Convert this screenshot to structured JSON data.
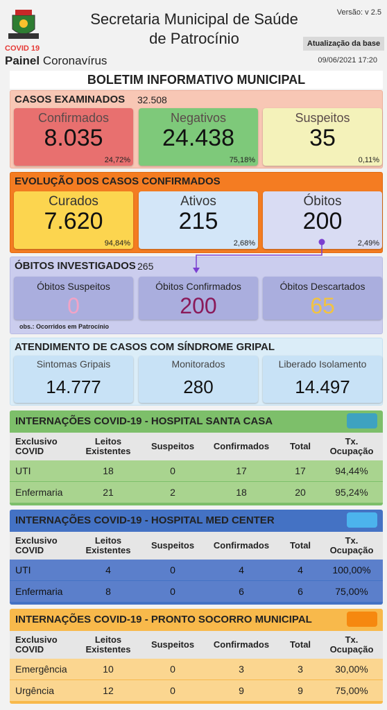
{
  "header": {
    "brand": "COVID 19",
    "panel_bold": "Painel",
    "panel": "Coronavírus",
    "title_line1": "Secretaria Municipal de Saúde",
    "title_line2": "de Patrocínio",
    "version": "Versão: v 2.5",
    "update_label": "Atualização da base",
    "update_time": "09/06/2021 17:20"
  },
  "bulletin_title": "BOLETIM INFORMATIVO MUNICIPAL",
  "sections": [
    {
      "title": "CASOS EXAMINADOS",
      "total": "32.508",
      "cards": [
        {
          "label": "Confirmados",
          "value": "8.035",
          "percent": "24,72%"
        },
        {
          "label": "Negativos",
          "value": "24.438",
          "percent": "75,18%"
        },
        {
          "label": "Suspeitos",
          "value": "35",
          "percent": "0,11%"
        }
      ]
    },
    {
      "title": "EVOLUÇÃO DOS CASOS CONFIRMADOS",
      "cards": [
        {
          "label": "Curados",
          "value": "7.620",
          "percent": "94,84%"
        },
        {
          "label": "Ativos",
          "value": "215",
          "percent": "2,68%"
        },
        {
          "label": "Óbitos",
          "value": "200",
          "percent": "2,49%"
        }
      ]
    },
    {
      "title": "ÓBITOS INVESTIGADOS",
      "total": "265",
      "cards": [
        {
          "label": "Óbitos Suspeitos",
          "value": "0"
        },
        {
          "label": "Óbitos Confirmados",
          "value": "200"
        },
        {
          "label": "Óbitos Descartados",
          "value": "65"
        }
      ]
    },
    {
      "title": "ATENDIMENTO DE CASOS COM SÍNDROME GRIPAL",
      "cards": [
        {
          "label": "Sintomas Gripais",
          "value": "14.777"
        },
        {
          "label": "Monitorados",
          "value": "280"
        },
        {
          "label": "Liberado Isolamento",
          "value": "14.497"
        }
      ]
    }
  ],
  "note": "obs.: Ocorridos em Patrocínio",
  "tables": [
    {
      "title": "INTERNAÇÕES COVID-19 - HOSPITAL SANTA CASA",
      "columns": [
        "Exclusivo COVID",
        "Leitos Existentes",
        "Suspeitos",
        "Confirmados",
        "Total",
        "Tx. Ocupação"
      ],
      "rows": [
        [
          "UTI",
          "18",
          "0",
          "17",
          "17",
          "94,44%"
        ],
        [
          "Enfermaria",
          "21",
          "2",
          "18",
          "20",
          "95,24%"
        ]
      ]
    },
    {
      "title": "INTERNAÇÕES COVID-19 - HOSPITAL MED CENTER",
      "columns": [
        "Exclusivo COVID",
        "Leitos Existentes",
        "Suspeitos",
        "Confirmados",
        "Total",
        "Tx. Ocupação"
      ],
      "rows": [
        [
          "UTI",
          "4",
          "0",
          "4",
          "4",
          "100,00%"
        ],
        [
          "Enfermaria",
          "8",
          "0",
          "6",
          "6",
          "75,00%"
        ]
      ]
    },
    {
      "title": "INTERNAÇÕES COVID-19 - PRONTO SOCORRO MUNICIPAL",
      "columns": [
        "Exclusivo COVID",
        "Leitos Existentes",
        "Suspeitos",
        "Confirmados",
        "Total",
        "Tx. Ocupação"
      ],
      "rows": [
        [
          "Emergência",
          "10",
          "0",
          "3",
          "3",
          "30,00%"
        ],
        [
          "Urgência",
          "12",
          "0",
          "9",
          "9",
          "75,00%"
        ]
      ]
    }
  ]
}
